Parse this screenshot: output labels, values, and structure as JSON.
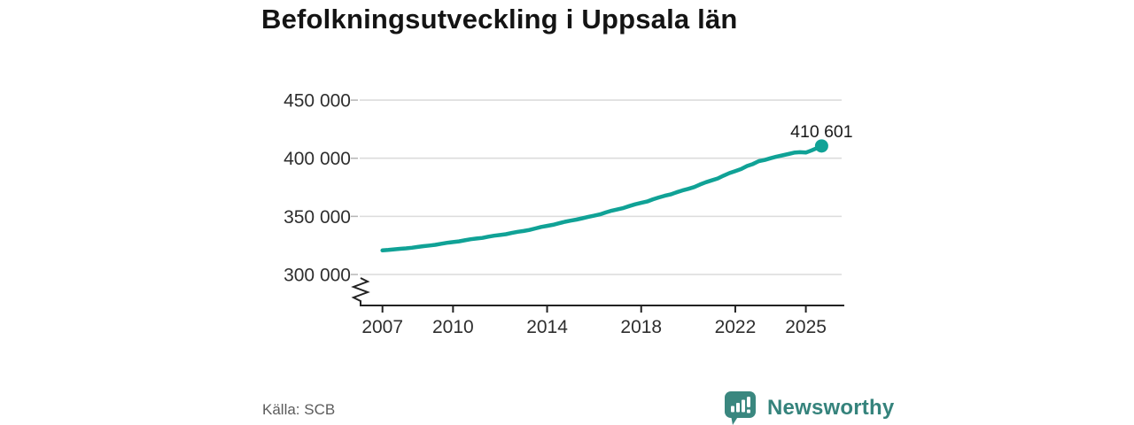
{
  "header": {
    "title": "Befolkningsutveckling i Uppsala län"
  },
  "footer": {
    "source_label": "Källa: SCB",
    "brand_name": "Newsworthy"
  },
  "colors": {
    "line": "#10a296",
    "grid": "#dcdcdc",
    "axis": "#222222",
    "tick_label": "#2e2e2e",
    "end_label": "#1a1a1a",
    "source_text": "#5c5c5c",
    "brand_teal": "#35837c"
  },
  "chart_data": {
    "type": "line",
    "title": "Befolkningsutveckling i Uppsala län",
    "xlabel": "",
    "ylabel": "",
    "grid": "horizontal",
    "axis_break": true,
    "legend_position": "none",
    "end_label": "410 601",
    "latest_value": 410601,
    "x_ticks": [
      2007,
      2010,
      2014,
      2018,
      2022,
      2025
    ],
    "x_tick_labels": [
      "2007",
      "2010",
      "2014",
      "2018",
      "2022",
      "2025"
    ],
    "y_ticks": [
      300000,
      350000,
      400000,
      450000
    ],
    "y_tick_labels": [
      "300 000",
      "350 000",
      "400 000",
      "450 000"
    ],
    "xlim": [
      2006.2,
      2026.5
    ],
    "ylim": [
      300000,
      455000
    ],
    "series": [
      {
        "name": "Befolkning",
        "x": [
          2007.0,
          2007.25,
          2007.5,
          2007.75,
          2008.0,
          2008.25,
          2008.5,
          2008.75,
          2009.0,
          2009.25,
          2009.5,
          2009.75,
          2010.0,
          2010.25,
          2010.5,
          2010.75,
          2011.0,
          2011.25,
          2011.5,
          2011.75,
          2012.0,
          2012.25,
          2012.5,
          2012.75,
          2013.0,
          2013.25,
          2013.5,
          2013.75,
          2014.0,
          2014.25,
          2014.5,
          2014.75,
          2015.0,
          2015.25,
          2015.5,
          2015.75,
          2016.0,
          2016.25,
          2016.5,
          2016.75,
          2017.0,
          2017.25,
          2017.5,
          2017.75,
          2018.0,
          2018.25,
          2018.5,
          2018.75,
          2019.0,
          2019.25,
          2019.5,
          2019.75,
          2020.0,
          2020.25,
          2020.5,
          2020.75,
          2021.0,
          2021.25,
          2021.5,
          2021.75,
          2022.0,
          2022.25,
          2022.5,
          2022.75,
          2023.0,
          2023.25,
          2023.5,
          2023.75,
          2024.0,
          2024.25,
          2024.5,
          2024.75,
          2025.0,
          2025.25,
          2025.5,
          2025.67
        ],
        "values": [
          320700,
          321100,
          321600,
          322100,
          322500,
          323000,
          323700,
          324400,
          324900,
          325500,
          326400,
          327300,
          327900,
          328500,
          329400,
          330300,
          330900,
          331500,
          332500,
          333400,
          334000,
          334700,
          335700,
          336700,
          337400,
          338300,
          339600,
          340900,
          341800,
          342700,
          344000,
          345300,
          346300,
          347200,
          348400,
          349600,
          350600,
          351700,
          353400,
          354900,
          356100,
          357200,
          358900,
          360400,
          361600,
          362800,
          364700,
          366300,
          367700,
          368900,
          370700,
          372300,
          373700,
          375200,
          377400,
          379400,
          381000,
          382600,
          385000,
          387200,
          389000,
          390700,
          393300,
          395100,
          397500,
          398500,
          400000,
          401400,
          402500,
          403600,
          404800,
          405200,
          404900,
          406800,
          409000,
          410601
        ]
      }
    ]
  }
}
